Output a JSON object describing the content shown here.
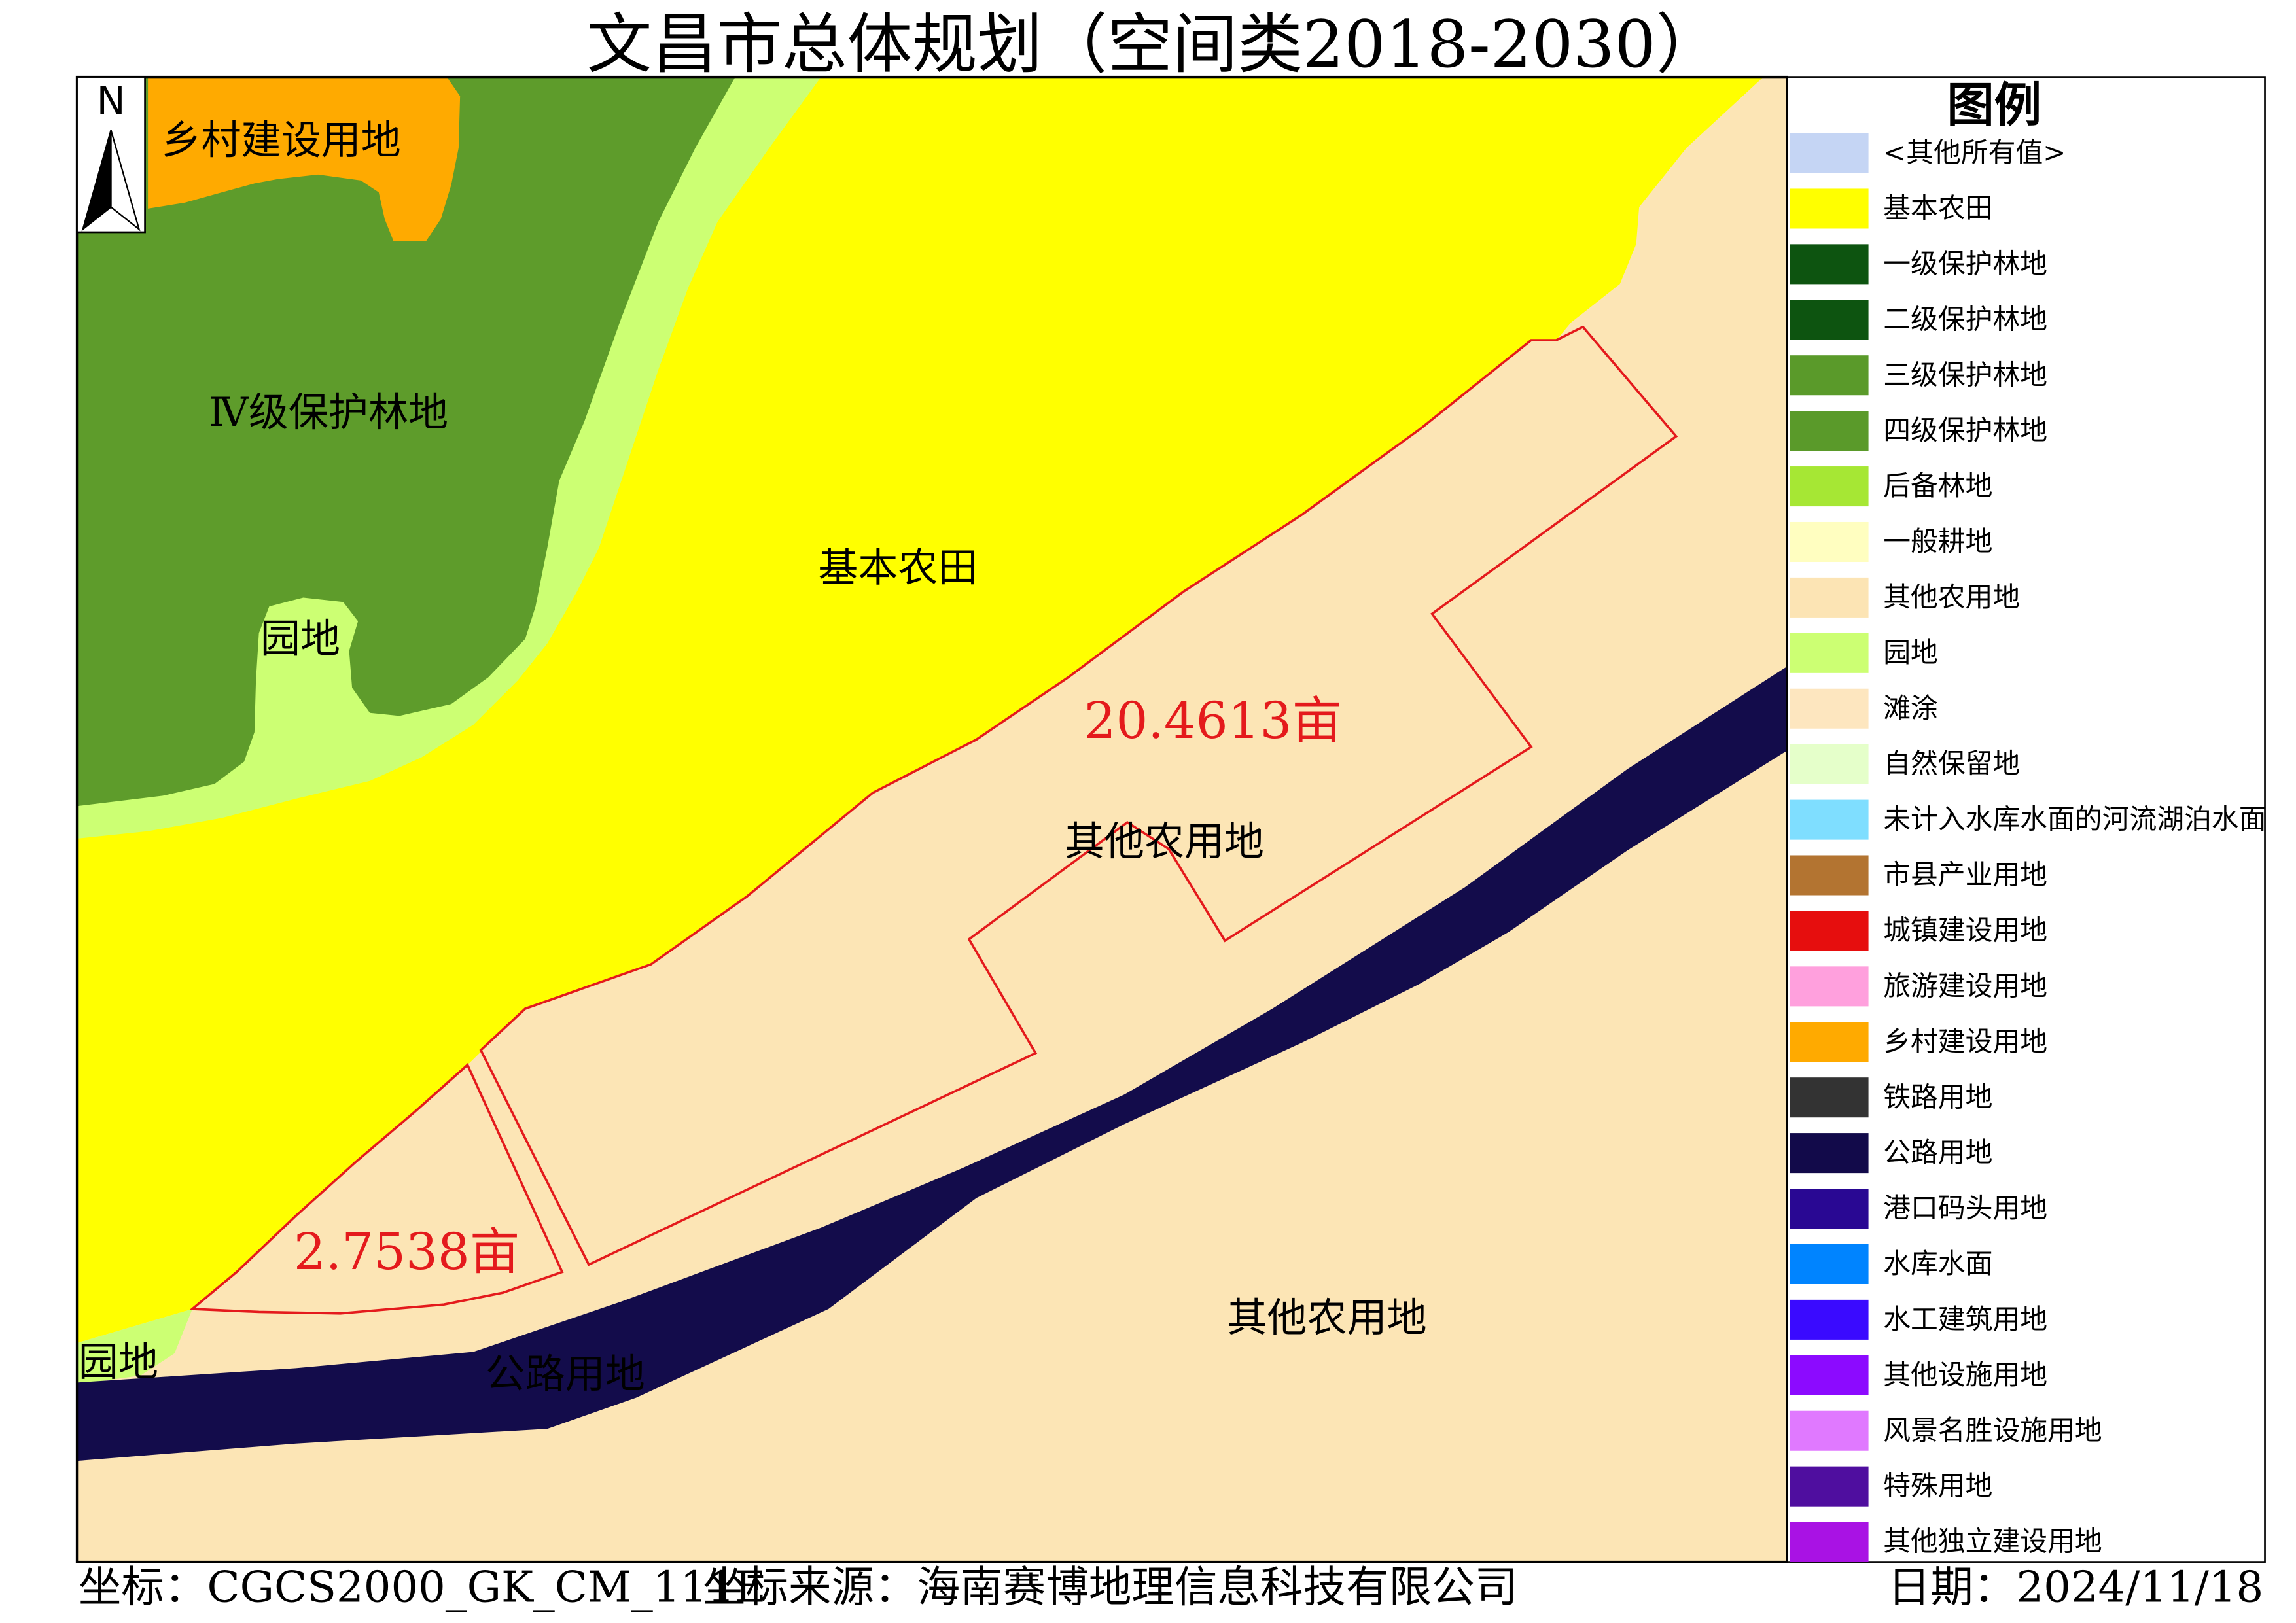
{
  "title": "文昌市总体规划（空间类2018-2030）",
  "north_arrow": {
    "label": "N"
  },
  "map": {
    "labels": {
      "rural_construction": "乡村建设用地",
      "forest_level_iv": "Ⅳ级保护林地",
      "garden_upper": "园地",
      "basic_farmland": "基本农田",
      "parcel_large_area": "20.4613亩",
      "other_agricultural_center": "其他农用地",
      "parcel_small_area": "2.7538亩",
      "other_agricultural_lower": "其他农用地",
      "garden_lower": "园地",
      "highway": "公路用地"
    },
    "colors": {
      "basic_farmland": "#FFFF00",
      "forest_level_iv": "#5E9C2B",
      "garden": "#CCFF73",
      "other_agricultural": "#FCE5B5",
      "rural_construction": "#FFAA00",
      "highway": "#130C4B",
      "parcel_outline": "#E41A1C",
      "parcel_label": "#E41A1C"
    }
  },
  "legend": {
    "title": "图例",
    "items": [
      {
        "label": "<其他所有值>",
        "color": "#C5D5F4"
      },
      {
        "label": "基本农田",
        "color": "#FFFF00"
      },
      {
        "label": "一级保护林地",
        "color": "#0D5410"
      },
      {
        "label": "二级保护林地",
        "color": "#0D5410"
      },
      {
        "label": "三级保护林地",
        "color": "#5A9A2A"
      },
      {
        "label": "四级保护林地",
        "color": "#5A9A2A"
      },
      {
        "label": "后备林地",
        "color": "#A6E734"
      },
      {
        "label": "一般耕地",
        "color": "#FFFEC0"
      },
      {
        "label": "其他农用地",
        "color": "#FCE4B4"
      },
      {
        "label": "园地",
        "color": "#CCFF73"
      },
      {
        "label": "滩涂",
        "color": "#FDE6BF"
      },
      {
        "label": "自然保留地",
        "color": "#E5FFCA"
      },
      {
        "label": "未计入水库水面的河流湖泊水面",
        "color": "#7FDEFF"
      },
      {
        "label": "市县产业用地",
        "color": "#B37431"
      },
      {
        "label": "城镇建设用地",
        "color": "#E60E0E"
      },
      {
        "label": "旅游建设用地",
        "color": "#FFA0DD"
      },
      {
        "label": "乡村建设用地",
        "color": "#FFAA00"
      },
      {
        "label": "铁路用地",
        "color": "#333333"
      },
      {
        "label": "公路用地",
        "color": "#120A4A"
      },
      {
        "label": "港口码头用地",
        "color": "#290893"
      },
      {
        "label": "水库水面",
        "color": "#0084FF"
      },
      {
        "label": "水工建筑用地",
        "color": "#3A0AFF"
      },
      {
        "label": "其他设施用地",
        "color": "#8C0AFF"
      },
      {
        "label": "风景名胜设施用地",
        "color": "#E079FF"
      },
      {
        "label": "特殊用地",
        "color": "#4F0E9F"
      },
      {
        "label": "其他独立建设用地",
        "color": "#A912E4"
      }
    ]
  },
  "footer": {
    "coords": "坐标：CGCS2000_GK_CM_111E",
    "source": "坐标来源：海南赛博地理信息科技有限公司",
    "date": "日期：2024/11/18"
  }
}
